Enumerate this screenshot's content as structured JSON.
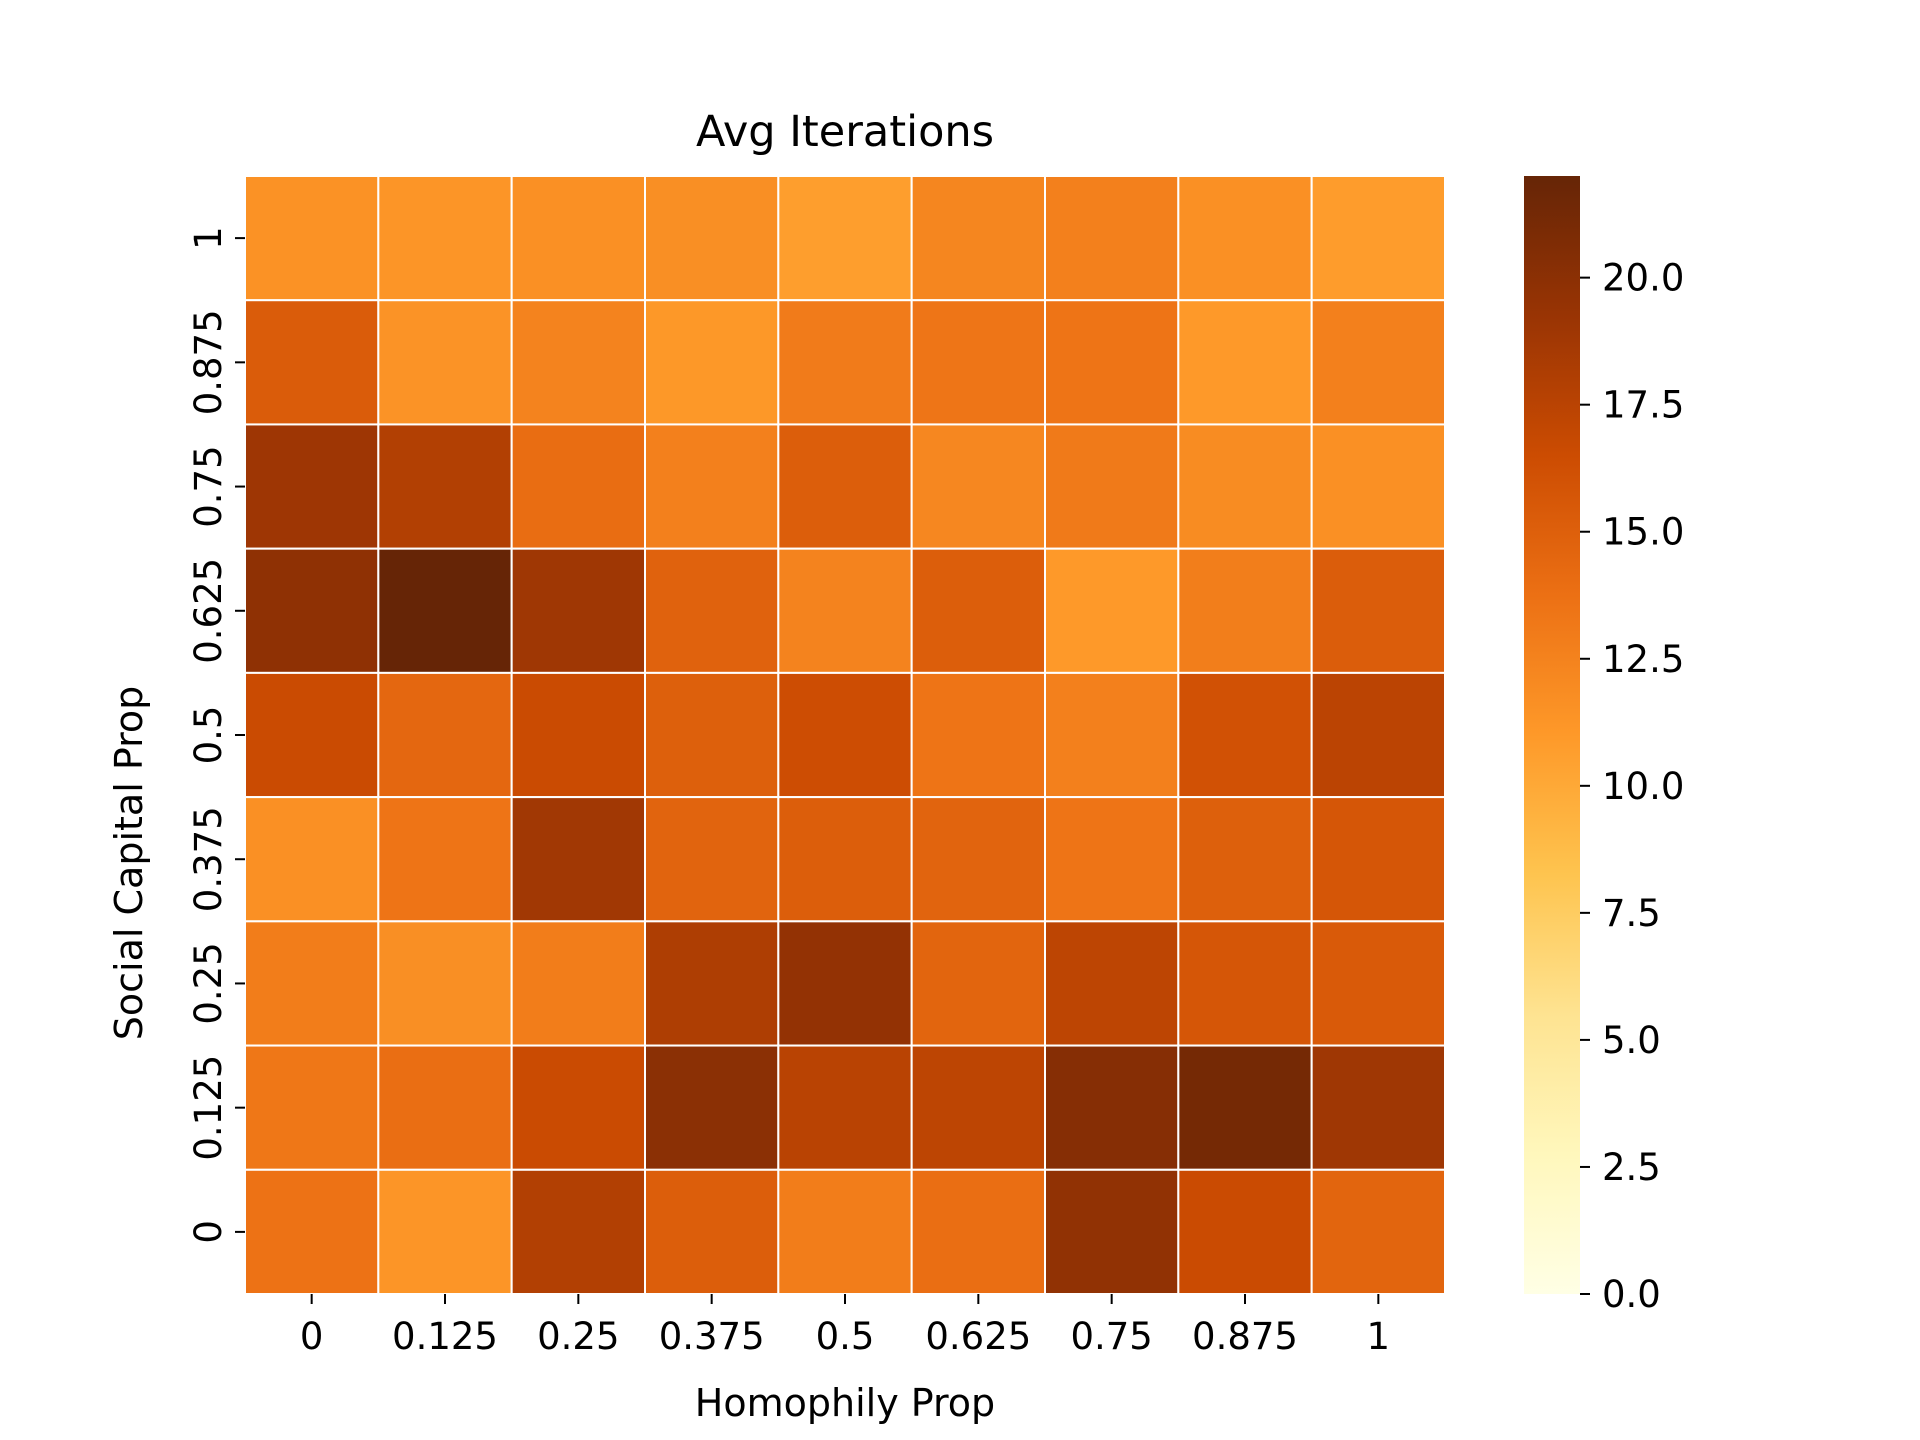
{
  "chart_data": {
    "type": "heatmap",
    "title": "Avg Iterations",
    "xlabel": "Homophily Prop",
    "ylabel": "Social Capital Prop",
    "x_categories": [
      "0",
      "0.125",
      "0.25",
      "0.375",
      "0.5",
      "0.625",
      "0.75",
      "0.875",
      "1"
    ],
    "y_categories": [
      "1",
      "0.875",
      "0.75",
      "0.625",
      "0.5",
      "0.375",
      "0.25",
      "0.125",
      "0"
    ],
    "values": [
      [
        11.5,
        11.3,
        11.6,
        11.7,
        10.7,
        12.3,
        12.7,
        11.6,
        10.8
      ],
      [
        15.3,
        11.4,
        12.5,
        11.1,
        13.0,
        13.4,
        13.5,
        11.0,
        12.7
      ],
      [
        19.0,
        17.9,
        14.0,
        12.7,
        15.1,
        12.2,
        13.1,
        11.9,
        11.6
      ],
      [
        19.8,
        22.0,
        18.9,
        14.8,
        12.5,
        15.1,
        11.0,
        12.8,
        15.2
      ],
      [
        16.6,
        14.4,
        16.6,
        15.0,
        16.4,
        13.5,
        12.7,
        16.1,
        17.4
      ],
      [
        11.6,
        13.5,
        18.8,
        14.7,
        15.1,
        14.7,
        13.5,
        15.0,
        15.7
      ],
      [
        12.9,
        11.7,
        12.9,
        18.1,
        19.6,
        14.6,
        17.3,
        15.7,
        15.4
      ],
      [
        13.3,
        13.9,
        16.6,
        20.0,
        17.5,
        17.3,
        20.3,
        21.2,
        18.9
      ],
      [
        13.6,
        11.3,
        17.9,
        15.1,
        12.9,
        13.9,
        19.7,
        16.6,
        14.6
      ]
    ],
    "colorbar": {
      "min": 0,
      "max": 22,
      "ticks": [
        0.0,
        2.5,
        5.0,
        7.5,
        10.0,
        12.5,
        15.0,
        17.5,
        20.0
      ],
      "tick_labels": [
        "0.0",
        "2.5",
        "5.0",
        "7.5",
        "10.0",
        "12.5",
        "15.0",
        "17.5",
        "20.0"
      ],
      "colormap": "YlOrBr",
      "stops": [
        "#ffffe5",
        "#fff7bc",
        "#fee391",
        "#fec44f",
        "#fe9929",
        "#ec7014",
        "#cc4c02",
        "#993404",
        "#662506"
      ]
    },
    "cell_separator_color": "#ffffff",
    "grid": false,
    "legend": "colorbar-right"
  }
}
